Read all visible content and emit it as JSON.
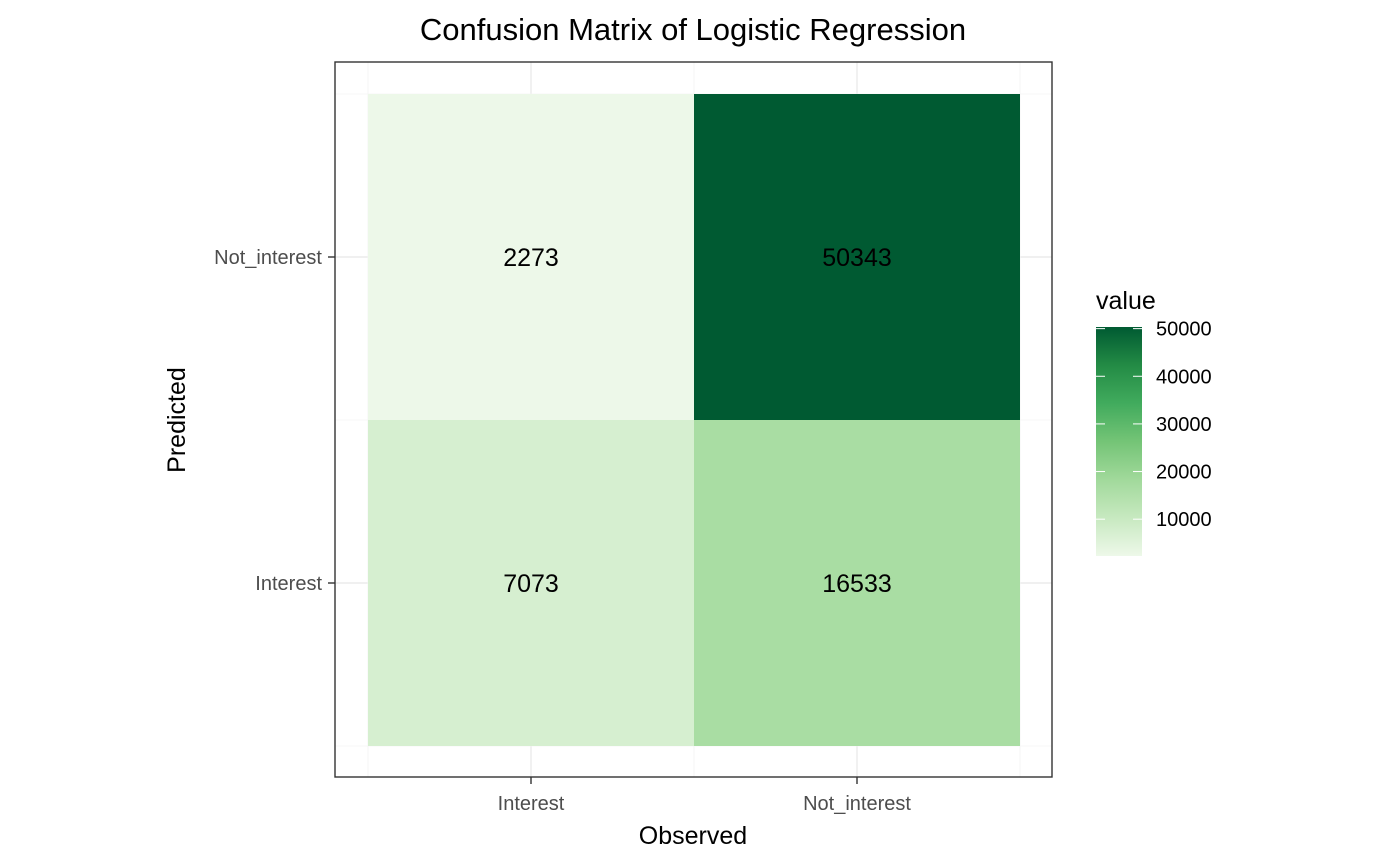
{
  "chart_data": {
    "type": "heatmap",
    "title": "Confusion Matrix of Logistic Regression",
    "xlabel": "Observed",
    "ylabel": "Predicted",
    "x_categories": [
      "Interest",
      "Not_interest"
    ],
    "y_categories": [
      "Interest",
      "Not_interest"
    ],
    "cells": [
      {
        "observed": "Interest",
        "predicted": "Not_interest",
        "value": 2273
      },
      {
        "observed": "Not_interest",
        "predicted": "Not_interest",
        "value": 50343
      },
      {
        "observed": "Interest",
        "predicted": "Interest",
        "value": 7073
      },
      {
        "observed": "Not_interest",
        "predicted": "Interest",
        "value": 16533
      }
    ],
    "legend": {
      "title": "value",
      "breaks": [
        10000,
        20000,
        30000,
        40000,
        50000
      ],
      "range": [
        2273,
        50343
      ],
      "placement": "right",
      "low_color": "#edf8e9",
      "high_color": "#005a32"
    },
    "grid": true
  }
}
